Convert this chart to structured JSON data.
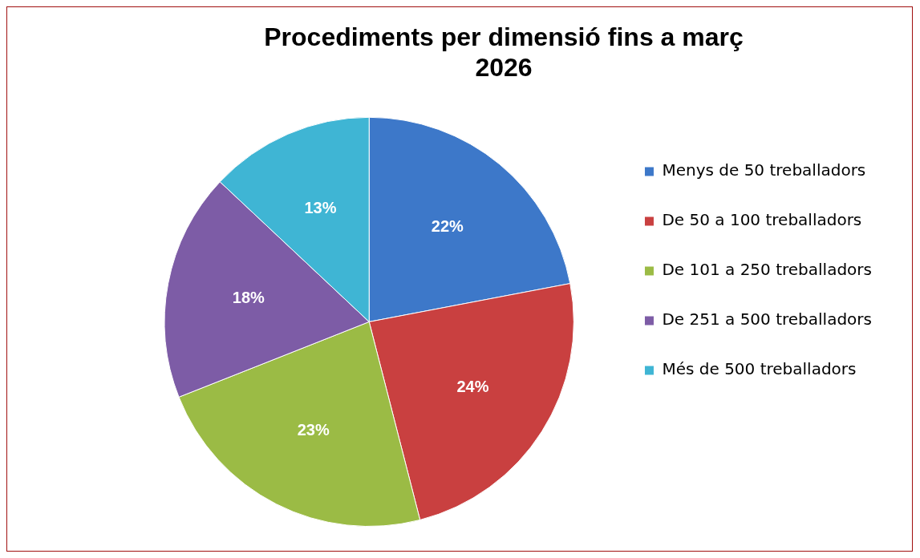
{
  "chart_data": {
    "type": "pie",
    "title": "Procediments per dimensió fins a març 2026",
    "categories": [
      "Menys de 50 treballadors",
      "De 50 a 100 treballadors",
      "De 101 a 250 treballadors",
      "De 251 a 500 treballadors",
      "Més de 500 treballadors"
    ],
    "values": [
      22,
      24,
      23,
      18,
      13
    ],
    "colors": [
      "#3d78c9",
      "#c94040",
      "#9bbb45",
      "#7d5ca6",
      "#3fb5d4"
    ],
    "value_labels": [
      "22%",
      "24%",
      "23%",
      "18%",
      "13%"
    ],
    "legend": "right"
  }
}
